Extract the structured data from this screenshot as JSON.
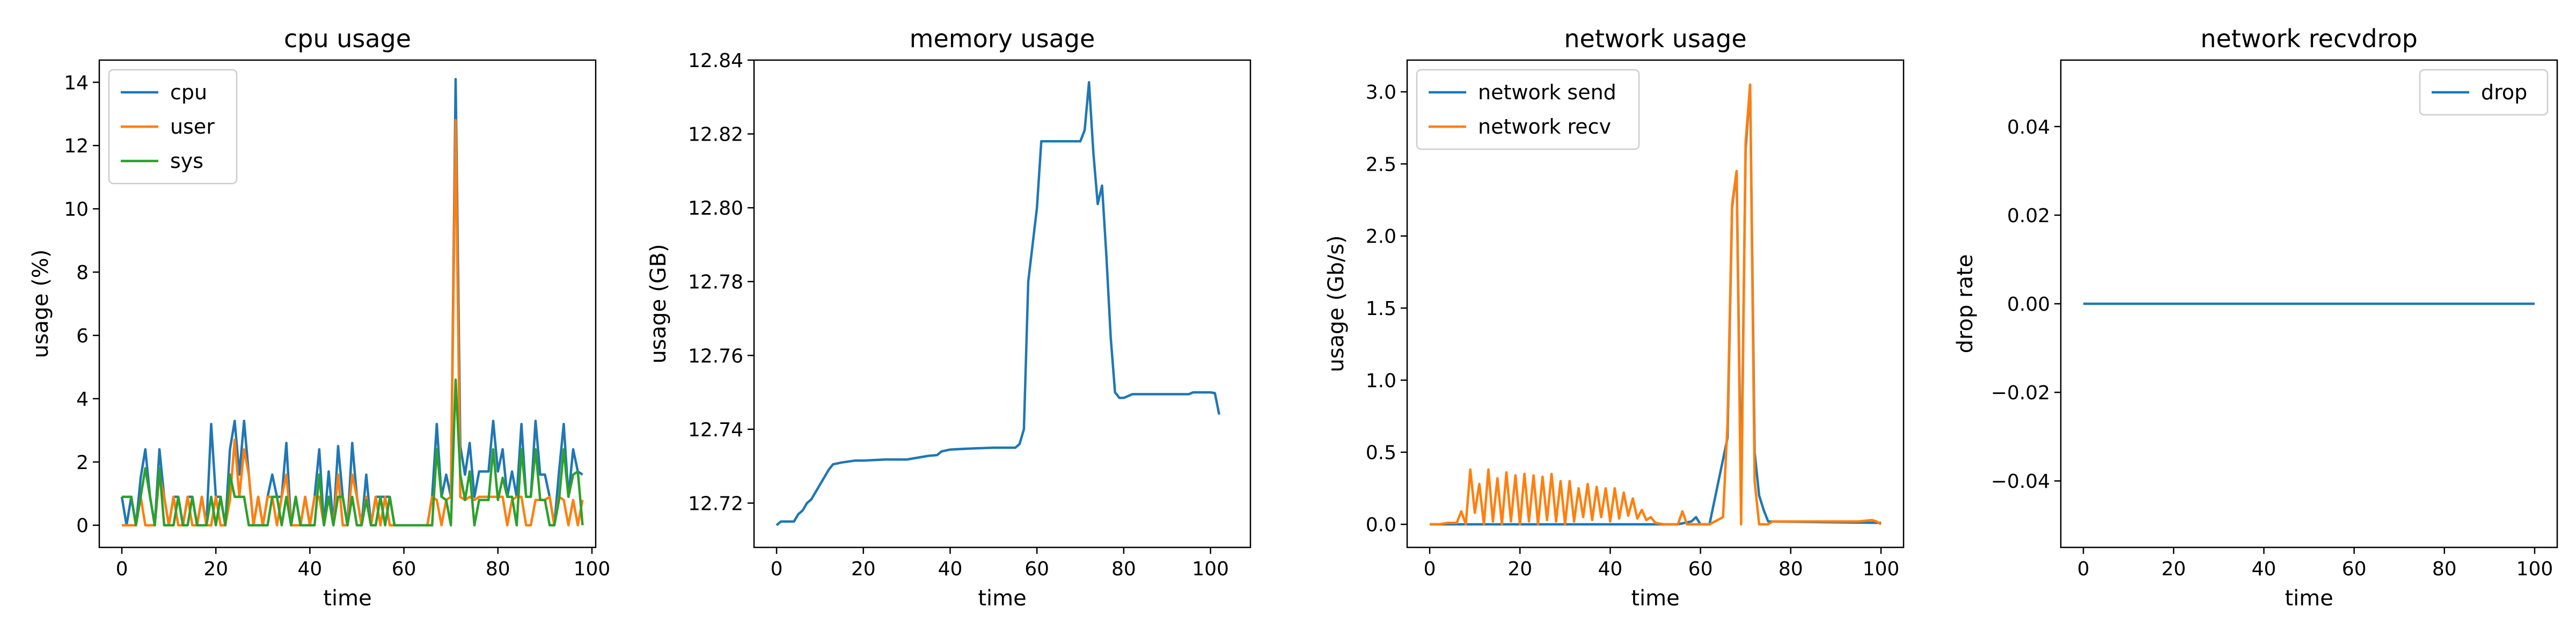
{
  "colors": {
    "c0": "#1f77b4",
    "c1": "#ff7f0e",
    "c2": "#2ca02c"
  },
  "chart_data": [
    {
      "type": "line",
      "title": "cpu usage",
      "xlabel": "time",
      "ylabel": "usage (%)",
      "xlim": [
        -4.8,
        100.8
      ],
      "ylim": [
        -0.7,
        14.7
      ],
      "xticks": [
        0,
        20,
        40,
        60,
        80,
        100
      ],
      "yticks": [
        0,
        2,
        4,
        6,
        8,
        10,
        12,
        14
      ],
      "ytick_labels": [
        "0",
        "2",
        "4",
        "6",
        "8",
        "10",
        "12",
        "14"
      ],
      "legend": "top-left",
      "series": [
        {
          "name": "cpu",
          "color": "#1f77b4",
          "values": [
            0.9,
            0,
            0.9,
            0,
            1.5,
            2.4,
            0.9,
            0,
            2.4,
            0.9,
            0,
            0.9,
            0.9,
            0,
            0.9,
            0.9,
            0,
            0.9,
            0,
            3.2,
            0.9,
            0.9,
            0,
            2.4,
            3.3,
            1.6,
            3.3,
            1.6,
            0,
            0.9,
            0,
            0.9,
            1.6,
            0.9,
            0.9,
            2.6,
            0,
            0.9,
            0,
            0.9,
            0,
            0.9,
            2.4,
            0,
            1.7,
            0,
            2.5,
            0.9,
            0,
            2.6,
            0.9,
            0,
            1.6,
            0,
            0.9,
            0.9,
            0.9,
            0.9,
            0,
            0,
            0,
            0,
            0,
            0,
            0,
            0,
            0.9,
            3.2,
            0.9,
            1.6,
            0.9,
            14.1,
            2.5,
            1.6,
            2.6,
            0.9,
            1.7,
            1.7,
            1.7,
            3.3,
            1.7,
            2.4,
            0.9,
            1.7,
            0.9,
            3.2,
            0.9,
            0.9,
            3.3,
            1.6,
            1.6,
            0.9,
            0,
            1.7,
            3.2,
            0.9,
            2.4,
            1.7,
            1.6
          ]
        },
        {
          "name": "user",
          "color": "#ff7f0e",
          "values": [
            0,
            0,
            0,
            0,
            0.9,
            0,
            0,
            0,
            1.6,
            0.9,
            0,
            0.9,
            0,
            0,
            0.9,
            0,
            0,
            0.9,
            0,
            0,
            0.9,
            0,
            0,
            0.8,
            2.7,
            0.9,
            2.4,
            1.6,
            0,
            0.9,
            0,
            0.9,
            0.9,
            0,
            0.9,
            1.6,
            0,
            0,
            0,
            0.9,
            0,
            0.9,
            0.9,
            0,
            0.9,
            0,
            1.6,
            0,
            0,
            1.6,
            0.9,
            0,
            0.9,
            0,
            0.9,
            0,
            0.9,
            0,
            0,
            0,
            0,
            0,
            0,
            0,
            0,
            0,
            0.9,
            0.8,
            0,
            0.8,
            0.9,
            12.8,
            0.9,
            0.8,
            0.9,
            0.8,
            0.9,
            0.9,
            0.9,
            0.9,
            0.9,
            0.9,
            0,
            0.8,
            0.9,
            0.9,
            0,
            0,
            0.8,
            0.8,
            0.8,
            0.9,
            0,
            0.9,
            0.8,
            0,
            0.8,
            0,
            0.8
          ]
        },
        {
          "name": "sys",
          "color": "#2ca02c",
          "values": [
            0.9,
            0.9,
            0.9,
            0,
            0.9,
            1.8,
            0.9,
            0,
            1.8,
            0,
            0,
            0,
            0.9,
            0,
            0,
            0.9,
            0,
            0,
            0,
            0.9,
            0,
            0.9,
            0,
            1.6,
            0.9,
            0.9,
            0.9,
            0,
            0,
            0,
            0,
            0,
            0.9,
            0.9,
            0,
            0.9,
            0,
            0.9,
            0,
            0,
            0,
            0,
            1.6,
            0,
            0.9,
            0,
            0.9,
            0.9,
            0,
            0.9,
            0,
            0,
            0.8,
            0,
            0,
            0.9,
            0,
            0.9,
            0,
            0,
            0,
            0,
            0,
            0,
            0,
            0,
            0,
            2.4,
            0.9,
            0.8,
            0,
            4.6,
            1.6,
            0.8,
            1.7,
            0,
            0.8,
            0.8,
            0.8,
            2.4,
            0.8,
            1.5,
            0.9,
            0.9,
            0,
            2.4,
            0.9,
            0.9,
            2.4,
            0.8,
            0.8,
            0,
            0,
            0.8,
            2.4,
            0.9,
            1.6,
            1.7,
            0
          ]
        }
      ]
    },
    {
      "type": "line",
      "title": "memory usage",
      "xlabel": "time",
      "ylabel": "usage (GB)",
      "xlim": [
        -5.2,
        109.2
      ],
      "ylim": [
        12.708,
        12.84
      ],
      "xticks": [
        0,
        20,
        40,
        60,
        80,
        100
      ],
      "yticks": [
        12.72,
        12.74,
        12.76,
        12.78,
        12.8,
        12.82,
        12.84
      ],
      "ytick_labels": [
        "12.72",
        "12.74",
        "12.76",
        "12.78",
        "12.80",
        "12.82",
        "12.84"
      ],
      "series": [
        {
          "name": "",
          "color": "#1f77b4",
          "points": [
            [
              0,
              12.714
            ],
            [
              1,
              12.715
            ],
            [
              4,
              12.715
            ],
            [
              5,
              12.717
            ],
            [
              6,
              12.718
            ],
            [
              7,
              12.72
            ],
            [
              8,
              12.721
            ],
            [
              9,
              12.723
            ],
            [
              10,
              12.725
            ],
            [
              11,
              12.727
            ],
            [
              12,
              12.729
            ],
            [
              13,
              12.7305
            ],
            [
              15,
              12.731
            ],
            [
              18,
              12.7315
            ],
            [
              20,
              12.7315
            ],
            [
              25,
              12.7318
            ],
            [
              30,
              12.7318
            ],
            [
              32,
              12.7322
            ],
            [
              35,
              12.7328
            ],
            [
              37,
              12.733
            ],
            [
              38,
              12.734
            ],
            [
              40,
              12.7345
            ],
            [
              45,
              12.7348
            ],
            [
              50,
              12.735
            ],
            [
              55,
              12.735
            ],
            [
              56,
              12.736
            ],
            [
              57,
              12.74
            ],
            [
              58,
              12.78
            ],
            [
              59,
              12.79
            ],
            [
              60,
              12.8
            ],
            [
              61,
              12.818
            ],
            [
              62,
              12.818
            ],
            [
              65,
              12.818
            ],
            [
              70,
              12.818
            ],
            [
              71,
              12.821
            ],
            [
              72,
              12.834
            ],
            [
              73,
              12.815
            ],
            [
              74,
              12.801
            ],
            [
              75,
              12.806
            ],
            [
              76,
              12.787
            ],
            [
              77,
              12.765
            ],
            [
              78,
              12.75
            ],
            [
              79,
              12.7485
            ],
            [
              80,
              12.7485
            ],
            [
              82,
              12.7495
            ],
            [
              85,
              12.7495
            ],
            [
              90,
              12.7495
            ],
            [
              95,
              12.7495
            ],
            [
              96,
              12.75
            ],
            [
              100,
              12.75
            ],
            [
              101,
              12.7498
            ],
            [
              102,
              12.744
            ]
          ]
        }
      ]
    },
    {
      "type": "line",
      "title": "network usage",
      "xlabel": "time",
      "ylabel": "usage (Gb/s)",
      "xlim": [
        -5.0,
        105.0
      ],
      "ylim": [
        -0.16,
        3.22
      ],
      "xticks": [
        0,
        20,
        40,
        60,
        80,
        100
      ],
      "yticks": [
        0.0,
        0.5,
        1.0,
        1.5,
        2.0,
        2.5,
        3.0
      ],
      "ytick_labels": [
        "0.0",
        "0.5",
        "1.0",
        "1.5",
        "2.0",
        "2.5",
        "3.0"
      ],
      "legend": "top-left",
      "series": [
        {
          "name": "network send",
          "color": "#1f77b4",
          "points": [
            [
              0,
              0
            ],
            [
              55,
              0
            ],
            [
              58,
              0.02
            ],
            [
              59,
              0.05
            ],
            [
              60,
              0
            ],
            [
              62,
              0
            ],
            [
              66,
              0.6
            ],
            [
              67,
              2.2
            ],
            [
              68,
              2.45
            ],
            [
              69,
              0.2
            ],
            [
              70,
              2.6
            ],
            [
              71,
              3.05
            ],
            [
              72,
              0.5
            ],
            [
              73,
              0.2
            ],
            [
              74,
              0.1
            ],
            [
              75,
              0.02
            ],
            [
              100,
              0.01
            ]
          ]
        },
        {
          "name": "network recv",
          "color": "#ff7f0e",
          "points": [
            [
              0,
              0
            ],
            [
              2,
              0
            ],
            [
              4,
              0.01
            ],
            [
              6,
              0.01
            ],
            [
              7,
              0.09
            ],
            [
              8,
              0
            ],
            [
              9,
              0.38
            ],
            [
              10,
              0.08
            ],
            [
              11,
              0.28
            ],
            [
              12,
              0
            ],
            [
              13,
              0.38
            ],
            [
              14,
              0.02
            ],
            [
              15,
              0.32
            ],
            [
              16,
              0
            ],
            [
              17,
              0.36
            ],
            [
              18,
              0.02
            ],
            [
              19,
              0.34
            ],
            [
              20,
              0
            ],
            [
              21,
              0.35
            ],
            [
              22,
              0.02
            ],
            [
              23,
              0.34
            ],
            [
              24,
              0
            ],
            [
              25,
              0.33
            ],
            [
              26,
              0.03
            ],
            [
              27,
              0.35
            ],
            [
              28,
              0.02
            ],
            [
              29,
              0.3
            ],
            [
              30,
              0
            ],
            [
              31,
              0.3
            ],
            [
              32,
              0.02
            ],
            [
              33,
              0.25
            ],
            [
              34,
              0.05
            ],
            [
              35,
              0.28
            ],
            [
              36,
              0.03
            ],
            [
              37,
              0.26
            ],
            [
              38,
              0.05
            ],
            [
              39,
              0.25
            ],
            [
              40,
              0.02
            ],
            [
              41,
              0.25
            ],
            [
              42,
              0.04
            ],
            [
              43,
              0.22
            ],
            [
              44,
              0.06
            ],
            [
              45,
              0.18
            ],
            [
              46,
              0.04
            ],
            [
              47,
              0.1
            ],
            [
              48,
              0.03
            ],
            [
              49,
              0.05
            ],
            [
              50,
              0.01
            ],
            [
              52,
              0
            ],
            [
              55,
              0
            ],
            [
              56,
              0.09
            ],
            [
              57,
              0
            ],
            [
              60,
              0
            ],
            [
              62,
              0
            ],
            [
              65,
              0.05
            ],
            [
              66,
              0.7
            ],
            [
              67,
              2.22
            ],
            [
              68,
              2.45
            ],
            [
              69,
              0
            ],
            [
              70,
              2.65
            ],
            [
              71,
              3.05
            ],
            [
              72,
              0.3
            ],
            [
              73,
              0
            ],
            [
              75,
              0
            ],
            [
              76,
              0.02
            ],
            [
              80,
              0.02
            ],
            [
              85,
              0.02
            ],
            [
              90,
              0.02
            ],
            [
              95,
              0.02
            ],
            [
              98,
              0.03
            ],
            [
              99,
              0.02
            ],
            [
              100,
              0
            ]
          ]
        }
      ]
    },
    {
      "type": "line",
      "title": "network recvdrop",
      "xlabel": "time",
      "ylabel": "drop rate",
      "xlim": [
        -5.0,
        105.0
      ],
      "ylim": [
        -0.055,
        0.055
      ],
      "xticks": [
        0,
        20,
        40,
        60,
        80,
        100
      ],
      "yticks": [
        -0.04,
        -0.02,
        0.0,
        0.02,
        0.04
      ],
      "ytick_labels": [
        "−0.04",
        "−0.02",
        "0.00",
        "0.02",
        "0.04"
      ],
      "legend": "top-right",
      "series": [
        {
          "name": "drop",
          "color": "#1f77b4",
          "points": [
            [
              0,
              0
            ],
            [
              100,
              0
            ]
          ]
        }
      ]
    }
  ]
}
